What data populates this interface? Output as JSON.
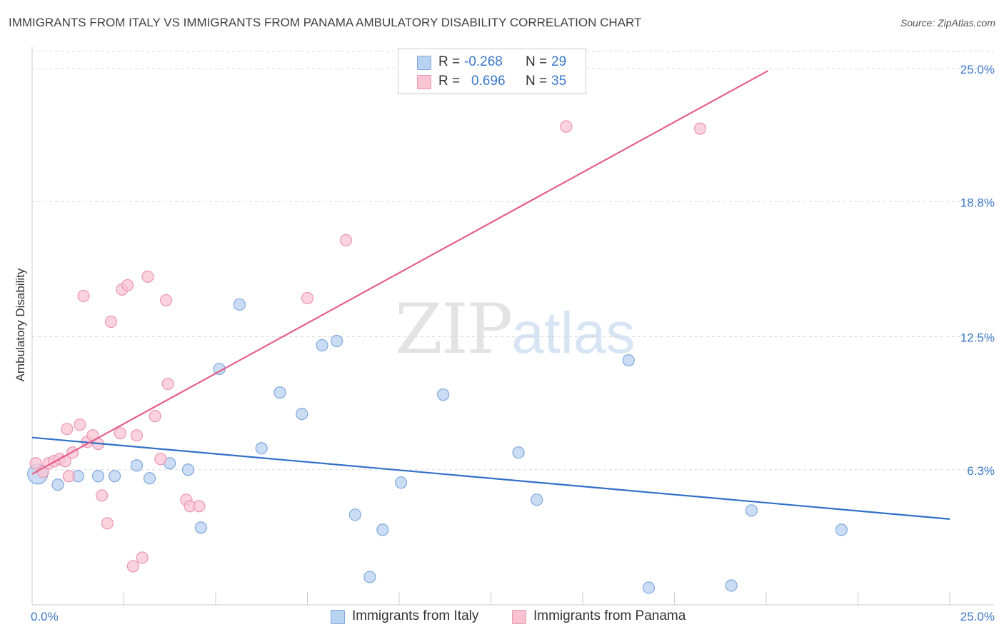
{
  "title": "IMMIGRANTS FROM ITALY VS IMMIGRANTS FROM PANAMA AMBULATORY DISABILITY CORRELATION CHART",
  "source": "Source: ZipAtlas.com",
  "watermark": {
    "zip": "ZIP",
    "atlas": "atlas"
  },
  "colors": {
    "italy_fill": "#b8d2f2",
    "italy_stroke": "#7fa8dd",
    "italy_line": "#3070c8",
    "panama_fill": "#f8c4d4",
    "panama_stroke": "#ec95b1",
    "panama_line": "#e5608a",
    "axis_text": "#3b78c8",
    "grid": "#d9d9d9"
  },
  "legend": {
    "italy": {
      "r_label": "R = ",
      "r_value": "-0.268",
      "n_label": "N = ",
      "n_value": "29"
    },
    "panama": {
      "r_label": "R = ",
      "r_value": "0.696",
      "n_label": "N = ",
      "n_value": "35"
    }
  },
  "bottom_legend": {
    "italy": "Immigrants from Italy",
    "panama": "Immigrants from Panama"
  },
  "chart_data": {
    "type": "scatter",
    "title": "IMMIGRANTS FROM ITALY VS IMMIGRANTS FROM PANAMA AMBULATORY DISABILITY CORRELATION CHART",
    "xlabel": "",
    "ylabel": "Ambulatory Disability",
    "xlim": [
      0,
      25
    ],
    "ylim": [
      0,
      25.8
    ],
    "x_tick_labels": [
      "0.0%",
      "25.0%"
    ],
    "y_ticks": [
      6.3,
      12.5,
      18.8,
      25.0
    ],
    "y_tick_labels": [
      "6.3%",
      "12.5%",
      "18.8%",
      "25.0%"
    ],
    "legend_position": "bottom",
    "series": [
      {
        "name": "Immigrants from Italy",
        "r": -0.268,
        "n": 29,
        "trend": {
          "x": [
            0,
            25
          ],
          "y": [
            7.8,
            4.0
          ]
        },
        "points": [
          [
            0.15,
            6.1
          ],
          [
            0.7,
            5.6
          ],
          [
            1.25,
            6.0
          ],
          [
            1.8,
            6.0
          ],
          [
            2.25,
            6.0
          ],
          [
            2.85,
            6.5
          ],
          [
            3.2,
            5.9
          ],
          [
            3.75,
            6.6
          ],
          [
            4.25,
            6.3
          ],
          [
            4.6,
            3.6
          ],
          [
            5.1,
            11.0
          ],
          [
            5.65,
            14.0
          ],
          [
            6.25,
            7.3
          ],
          [
            6.75,
            9.9
          ],
          [
            7.35,
            8.9
          ],
          [
            7.9,
            12.1
          ],
          [
            8.3,
            12.3
          ],
          [
            8.8,
            4.2
          ],
          [
            9.2,
            1.3
          ],
          [
            9.55,
            3.5
          ],
          [
            10.05,
            5.7
          ],
          [
            11.2,
            9.8
          ],
          [
            13.25,
            7.1
          ],
          [
            13.75,
            4.9
          ],
          [
            16.25,
            11.4
          ],
          [
            16.8,
            0.8
          ],
          [
            19.05,
            0.9
          ],
          [
            19.6,
            4.4
          ],
          [
            22.05,
            3.5
          ]
        ]
      },
      {
        "name": "Immigrants from Panama",
        "r": 0.696,
        "n": 35,
        "trend": {
          "x": [
            0,
            20.05
          ],
          "y": [
            6.1,
            24.9
          ]
        },
        "points": [
          [
            0.1,
            6.6
          ],
          [
            0.3,
            6.2
          ],
          [
            0.45,
            6.6
          ],
          [
            0.6,
            6.7
          ],
          [
            0.75,
            6.8
          ],
          [
            0.9,
            6.7
          ],
          [
            0.95,
            8.2
          ],
          [
            1.0,
            6.0
          ],
          [
            1.1,
            7.1
          ],
          [
            1.3,
            8.4
          ],
          [
            1.4,
            14.4
          ],
          [
            1.5,
            7.6
          ],
          [
            1.65,
            7.9
          ],
          [
            1.8,
            7.5
          ],
          [
            1.9,
            5.1
          ],
          [
            2.05,
            3.8
          ],
          [
            2.15,
            13.2
          ],
          [
            2.4,
            8.0
          ],
          [
            2.45,
            14.7
          ],
          [
            2.6,
            14.9
          ],
          [
            2.75,
            1.8
          ],
          [
            2.85,
            7.9
          ],
          [
            3.0,
            2.2
          ],
          [
            3.15,
            15.3
          ],
          [
            3.35,
            8.8
          ],
          [
            3.5,
            6.8
          ],
          [
            3.65,
            14.2
          ],
          [
            3.7,
            10.3
          ],
          [
            4.2,
            4.9
          ],
          [
            4.3,
            4.6
          ],
          [
            4.55,
            4.6
          ],
          [
            7.5,
            14.3
          ],
          [
            8.55,
            17.0
          ],
          [
            14.55,
            22.3
          ],
          [
            18.2,
            22.2
          ]
        ]
      }
    ]
  }
}
